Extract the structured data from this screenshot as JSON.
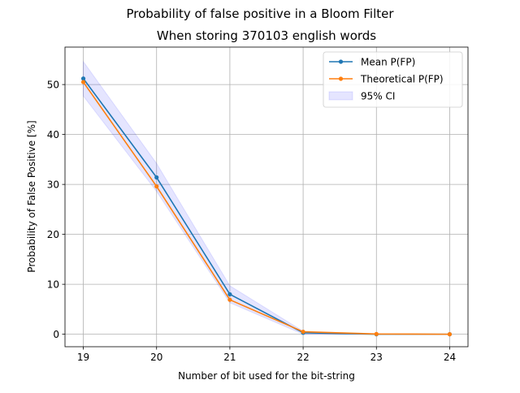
{
  "figure": {
    "suptitle": "Probability of false positive in a Bloom Filter"
  },
  "chart_data": {
    "type": "line",
    "title": "When storing 370103 english words",
    "xlabel": "Number of bit used for the bit-string",
    "ylabel": "Probability of False Positive [%]",
    "x": [
      19,
      20,
      21,
      22,
      23,
      24
    ],
    "xlim": [
      18.75,
      24.25
    ],
    "ylim": [
      -2.5,
      57.5
    ],
    "xticks": [
      19,
      20,
      21,
      22,
      23,
      24
    ],
    "yticks": [
      0,
      10,
      20,
      30,
      40,
      50
    ],
    "grid": true,
    "legend_position": "upper-right",
    "series": [
      {
        "name": "Mean P(FP)",
        "values": [
          51.2,
          31.4,
          8.0,
          0.3,
          0.0,
          0.0
        ],
        "color": "#1f77b4",
        "marker": "point"
      },
      {
        "name": "Theoretical P(FP)",
        "values": [
          50.5,
          29.6,
          6.9,
          0.5,
          0.05,
          0.0
        ],
        "color": "#ff7f0e",
        "marker": "point"
      }
    ],
    "band": {
      "name": "95% CI",
      "lower": [
        47.7,
        28.6,
        6.3,
        0.0,
        -0.05,
        -0.05
      ],
      "upper": [
        54.6,
        34.2,
        9.7,
        0.6,
        0.1,
        0.05
      ],
      "color": "#0000ff"
    }
  }
}
